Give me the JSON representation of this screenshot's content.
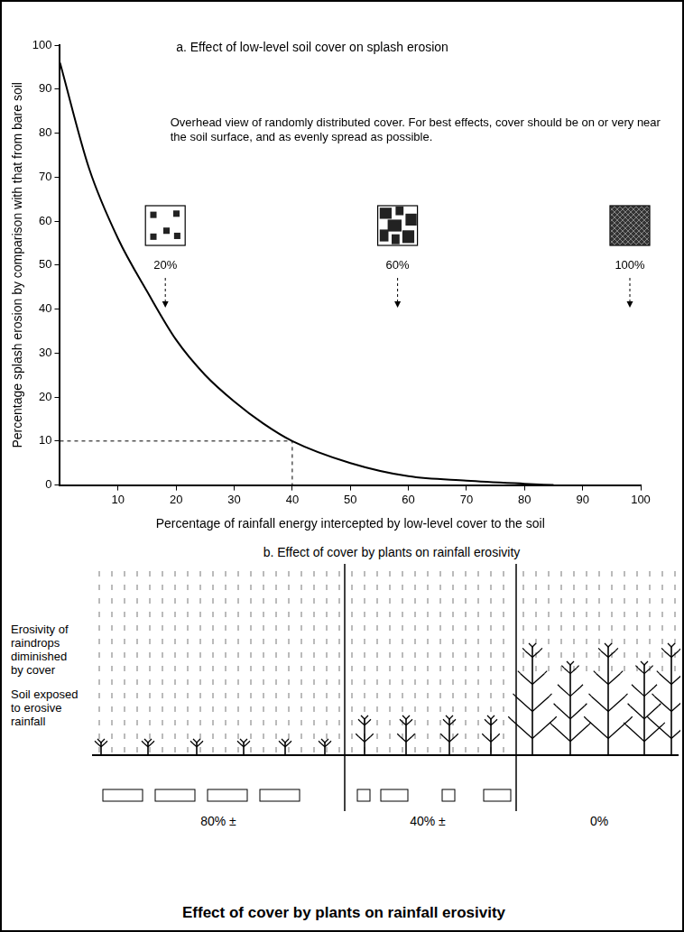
{
  "chart_data": {
    "type": "line",
    "title": "a. Effect of low-level soil cover on splash erosion",
    "annotation": "Overhead view of randomly distributed cover. For best effects, cover should be on or very near the soil surface, and as evenly spread as possible.",
    "x_label": "Percentage of rainfall energy intercepted by low-level cover to the soil",
    "y_label": "Percentage splash erosion by comparison with that from bare soil",
    "x": [
      0,
      5,
      10,
      15,
      20,
      25,
      30,
      35,
      40,
      50,
      60,
      70,
      80,
      85
    ],
    "values": [
      96,
      72,
      56,
      44,
      33,
      25,
      19,
      14,
      10,
      5,
      2,
      1,
      0.3,
      0
    ],
    "color": "#000000",
    "line_style": "solid",
    "xlim": [
      0,
      100
    ],
    "xticks": [
      10,
      20,
      30,
      40,
      50,
      60,
      70,
      80,
      90,
      100
    ],
    "ylim": [
      0,
      100
    ],
    "yticks": [
      0,
      10,
      20,
      30,
      40,
      50,
      60,
      70,
      80,
      90,
      100
    ],
    "grid": false,
    "guide_point": {
      "x": 40,
      "y": 10
    },
    "insets": [
      {
        "value": 20,
        "label": "20%"
      },
      {
        "value": 60,
        "label": "60%"
      },
      {
        "value": 100,
        "label": "100%"
      }
    ]
  },
  "diagram": {
    "title": "b. Effect of cover by plants on rainfall erosivity",
    "side_labels": [
      "Erosivity of raindrops diminished by cover",
      "Soil exposed to erosive rainfall"
    ],
    "panels": [
      "80% ±",
      "40% ±",
      "0%"
    ],
    "caption": "Effect of cover by plants on rainfall erosivity"
  }
}
